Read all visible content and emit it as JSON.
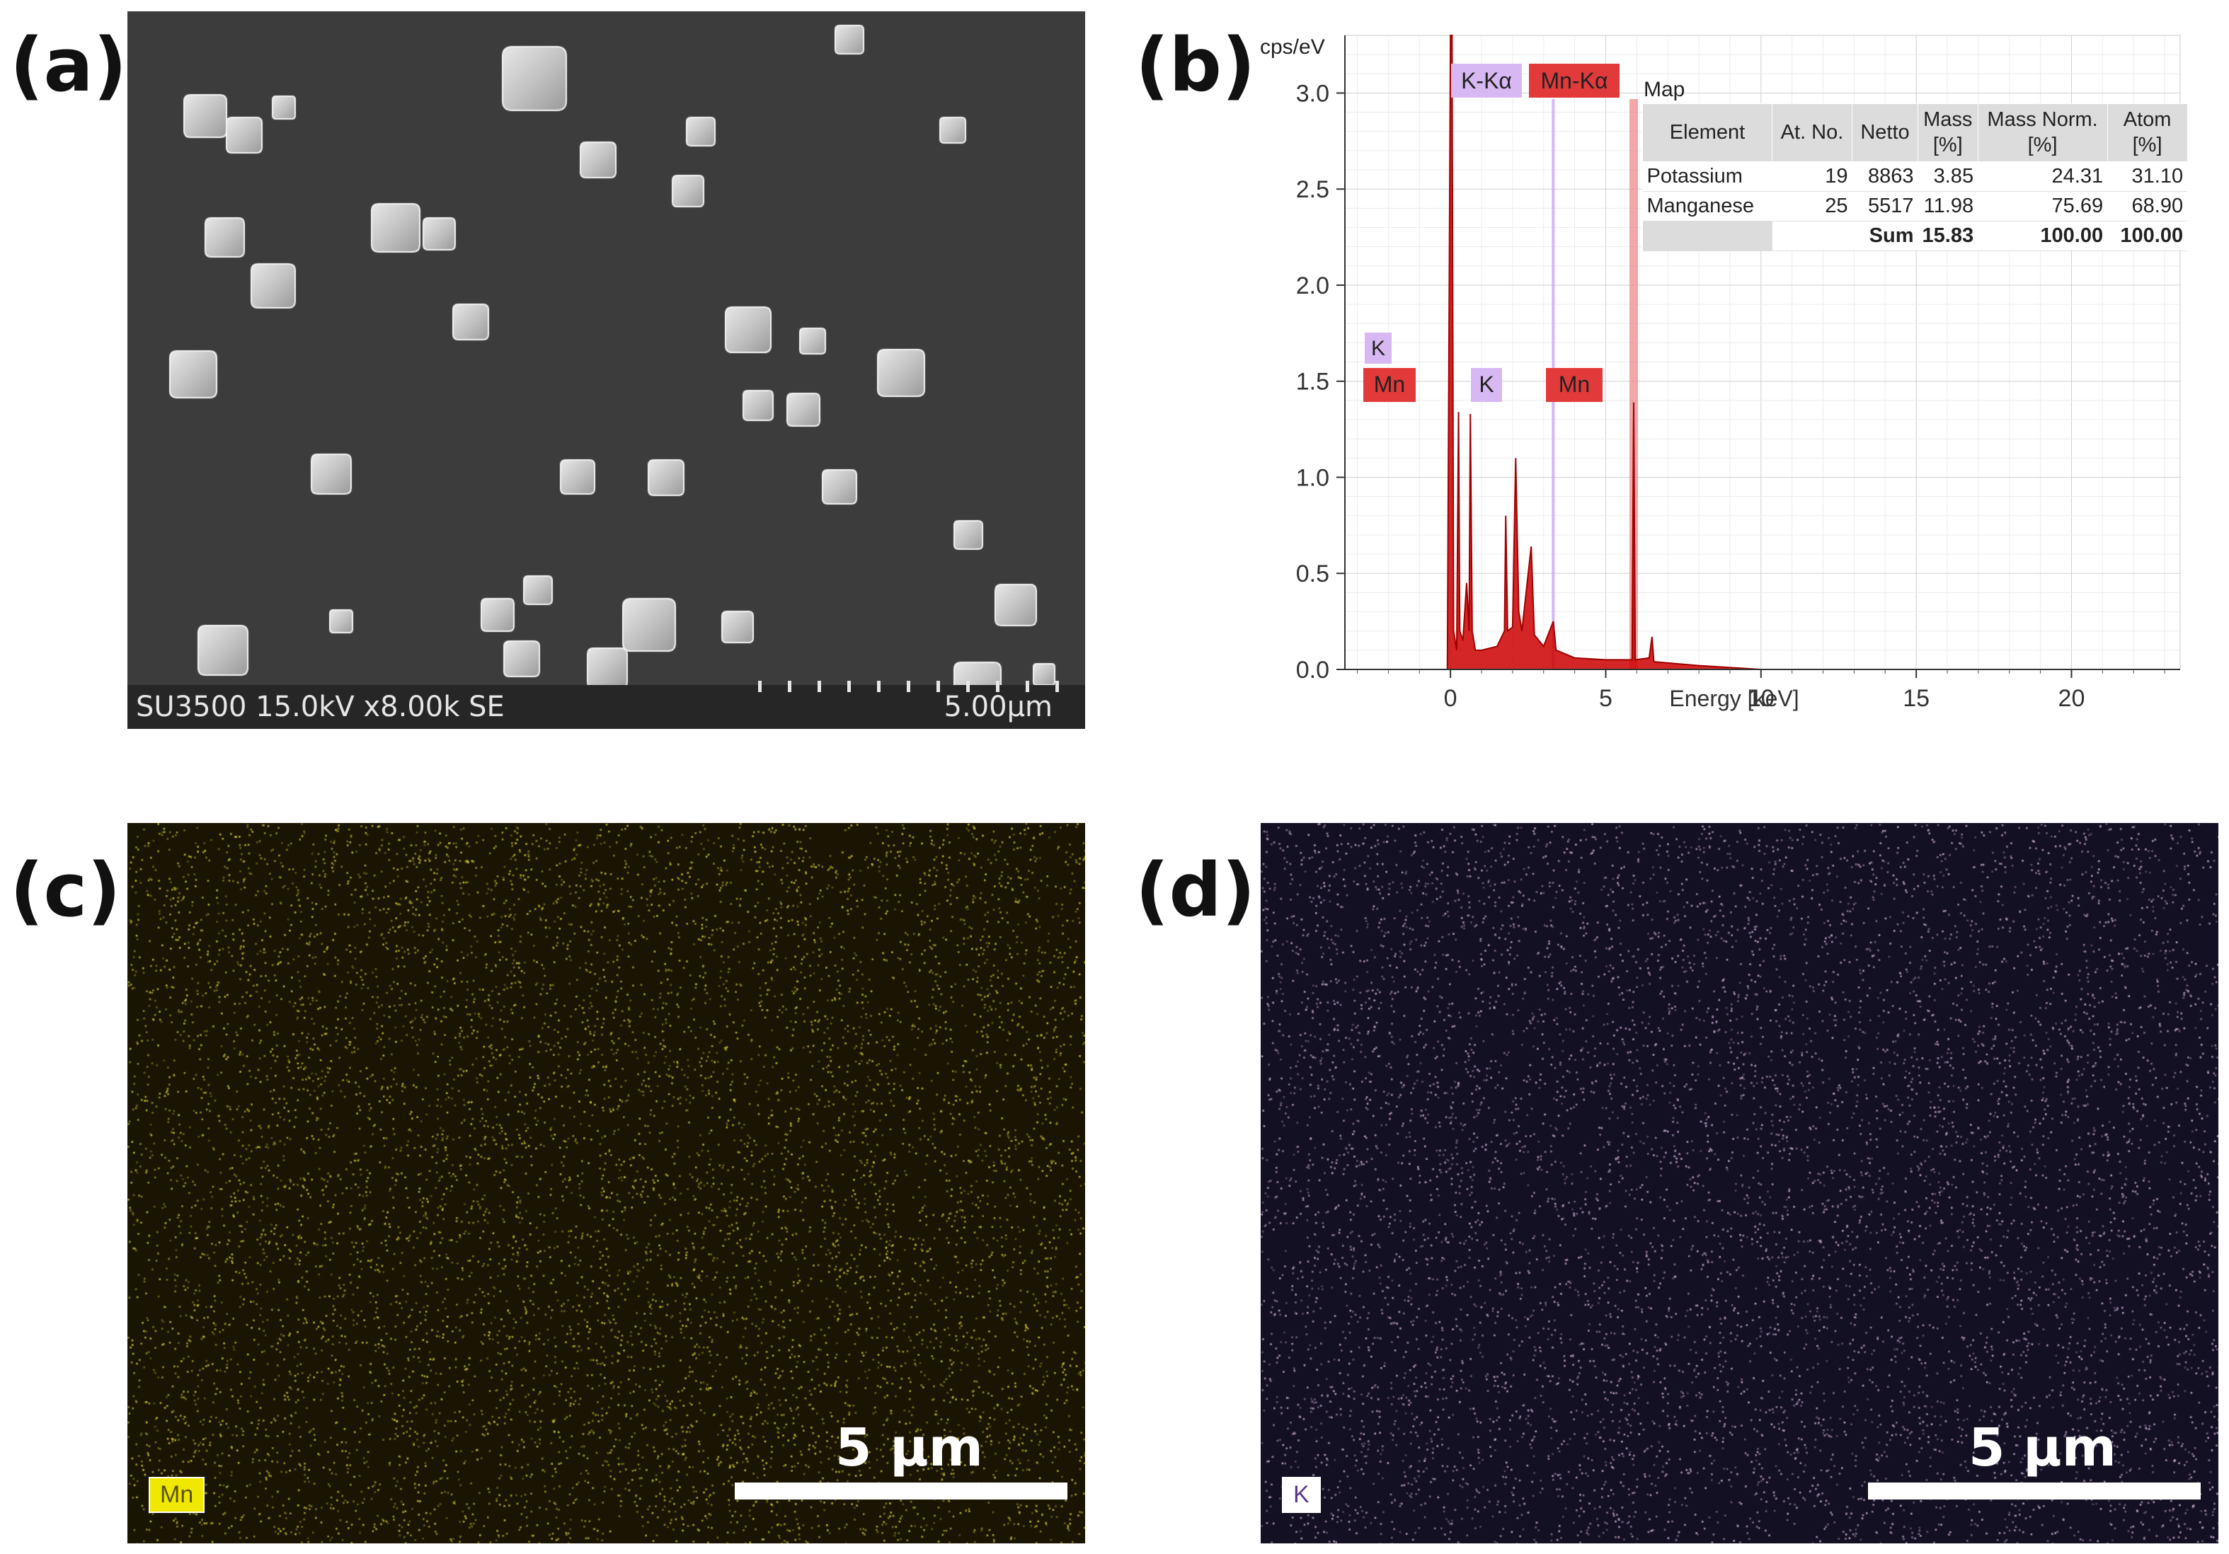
{
  "labels": {
    "a": "(a)",
    "b": "(b)",
    "c": "(c)",
    "d": "(d)"
  },
  "sem": {
    "info": "SU3500 15.0kV x8.00k SE",
    "scale_label": "5.00μm"
  },
  "eds": {
    "map_title": "Map",
    "peak_tags": {
      "k_alpha": "K-Kα",
      "mn_alpha": "Mn-Kα",
      "k_upper": "K",
      "mn_lower": "Mn",
      "k_mid": "K",
      "mn_mid": "Mn"
    },
    "table": {
      "headers": [
        "Element",
        "At. No.",
        "Netto",
        "Mass\n[%]",
        "Mass Norm.\n[%]",
        "Atom\n[%]"
      ],
      "rows": [
        [
          "Potassium",
          "19",
          "8863",
          "3.85",
          "24.31",
          "31.10"
        ],
        [
          "Manganese",
          "25",
          "5517",
          "11.98",
          "75.69",
          "68.90"
        ]
      ],
      "sum_row": [
        "",
        "",
        "Sum",
        "15.83",
        "100.00",
        "100.00"
      ]
    }
  },
  "chart_data": {
    "type": "line",
    "ylabel": "cps/eV",
    "xlabel": "Energy [keV]",
    "xlim": [
      -3.4,
      23.5
    ],
    "ylim": [
      0,
      3.3
    ],
    "x_ticks": [
      0,
      5,
      10,
      15,
      20
    ],
    "y_ticks": [
      0.0,
      0.5,
      1.0,
      1.5,
      2.0,
      2.5,
      3.0
    ],
    "grid": true,
    "series": [
      {
        "color": "#cc0000",
        "points": [
          [
            -0.1,
            0.0
          ],
          [
            0.0,
            3.3
          ],
          [
            0.05,
            3.3
          ],
          [
            0.1,
            0.2
          ],
          [
            0.2,
            0.1
          ],
          [
            0.26,
            1.34
          ],
          [
            0.3,
            0.2
          ],
          [
            0.4,
            0.15
          ],
          [
            0.52,
            0.45
          ],
          [
            0.6,
            0.2
          ],
          [
            0.64,
            1.33
          ],
          [
            0.7,
            0.2
          ],
          [
            0.8,
            0.1
          ],
          [
            1.0,
            0.1
          ],
          [
            1.5,
            0.12
          ],
          [
            1.74,
            0.2
          ],
          [
            1.78,
            0.8
          ],
          [
            1.84,
            0.2
          ],
          [
            2.0,
            0.22
          ],
          [
            2.1,
            1.1
          ],
          [
            2.2,
            0.3
          ],
          [
            2.3,
            0.2
          ],
          [
            2.6,
            0.64
          ],
          [
            2.7,
            0.18
          ],
          [
            3.0,
            0.12
          ],
          [
            3.31,
            0.25
          ],
          [
            3.4,
            0.1
          ],
          [
            4.0,
            0.06
          ],
          [
            5.0,
            0.05
          ],
          [
            5.85,
            0.05
          ],
          [
            5.9,
            1.39
          ],
          [
            5.95,
            0.05
          ],
          [
            6.4,
            0.06
          ],
          [
            6.49,
            0.17
          ],
          [
            6.55,
            0.04
          ],
          [
            8.0,
            0.02
          ],
          [
            10.0,
            0.0
          ],
          [
            23.0,
            0.0
          ]
        ]
      }
    ],
    "peak_lines": [
      {
        "label": "K-Kα",
        "energy": 3.31,
        "color": "#c9a0ee"
      },
      {
        "label": "Mn-Kα",
        "energy": 5.9,
        "color": "#f08a8a"
      }
    ]
  },
  "maps": {
    "mn": {
      "badge": "Mn",
      "scale_label": "5 μm",
      "dot_color": "#c8c032",
      "badge_bg": "#f0e800",
      "badge_fg": "#5a5400"
    },
    "k": {
      "badge": "K",
      "scale_label": "5 μm",
      "dot_color": "#c4a6cf",
      "badge_bg": "#ffffff",
      "badge_fg": "#5a3a8a"
    }
  }
}
